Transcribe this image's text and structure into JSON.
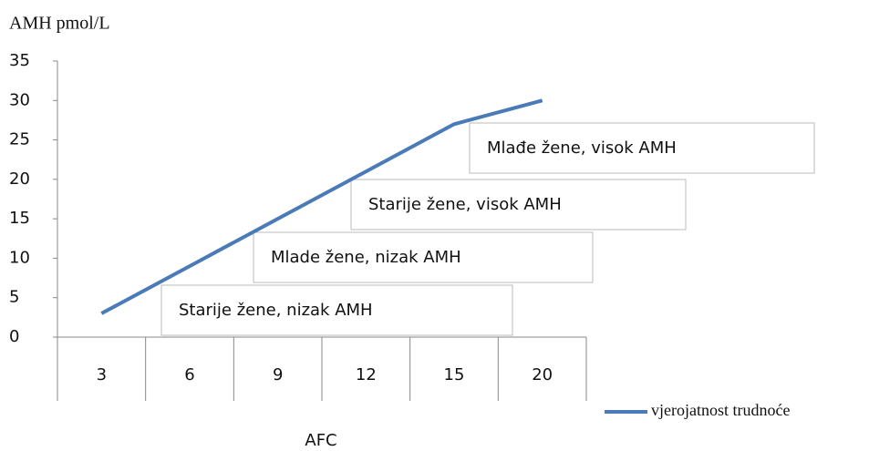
{
  "chart_data": {
    "type": "line",
    "y_axis_label": "AMH pmol/L",
    "x_axis_label": "AFC",
    "categories": [
      "3",
      "6",
      "9",
      "12",
      "15",
      "20"
    ],
    "series": [
      {
        "name": "vjerojatnost trudnoće",
        "color": "#4a7ab8",
        "values": [
          3,
          9,
          15,
          21,
          27,
          30
        ]
      }
    ],
    "ylim": [
      0,
      35
    ],
    "yticks": [
      0,
      5,
      10,
      15,
      20,
      25,
      30,
      35
    ],
    "legend": "bottom-right",
    "annotations": [
      "Starije žene, nizak AMH",
      "Mlade žene, nizak AMH",
      "Starije žene, visok AMH",
      "Mlađe žene, visok AMH"
    ]
  }
}
